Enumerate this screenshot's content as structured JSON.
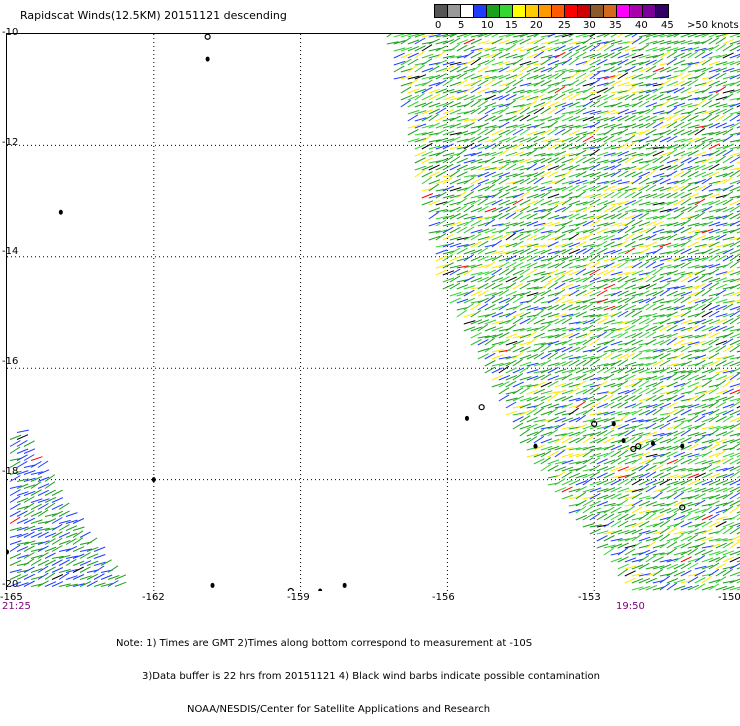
{
  "title": "Rapidscat Winds(12.5KM) 20151121 descending",
  "legend": {
    "labels": [
      "0",
      "5",
      "10",
      "15",
      "20",
      "25",
      "30",
      "35",
      "40",
      "45",
      ">50 knots"
    ],
    "colors": [
      "#555555",
      "#999999",
      "#ffffff",
      "#1e3cff",
      "#1aa01a",
      "#33d633",
      "#ffff00",
      "#ffcc00",
      "#ff9900",
      "#ff5a00",
      "#ff0000",
      "#cc0000",
      "#8b5a2b",
      "#d2691e",
      "#ff00ff",
      "#aa00aa",
      "#7a0099",
      "#330066"
    ]
  },
  "axes": {
    "lat_labels": [
      "-10",
      "-12",
      "-14",
      "-16",
      "-18",
      "-20"
    ],
    "lon_labels": [
      "-165",
      "-162",
      "-159",
      "-156",
      "-153",
      "-150"
    ]
  },
  "times": {
    "left": "21:25",
    "right": "19:50"
  },
  "notes": [
    "Note: 1) Times are GMT 2)Times along bottom correspond to measurement at -10S",
    "3)Data buffer is 22 hrs from 20151121 4) Black wind barbs indicate possible contamination",
    "NOAA/NESDIS/Center for Satellite Applications and Research"
  ],
  "map": {
    "lon_range": [
      -165,
      -150
    ],
    "lat_range": [
      -10,
      -20
    ],
    "grid_lines": "dotted",
    "swaths": [
      {
        "name": "eastern-swath",
        "polygon_lonlat": [
          [
            -157.3,
            -10
          ],
          [
            -150,
            -10
          ],
          [
            -150,
            -20
          ],
          [
            -152.3,
            -20
          ],
          [
            -154.5,
            -17.5
          ],
          [
            -156.2,
            -14.5
          ]
        ]
      },
      {
        "name": "western-swath",
        "polygon_lonlat": [
          [
            -165,
            -17.2
          ],
          [
            -164.8,
            -17.1
          ],
          [
            -163.9,
            -18.5
          ],
          [
            -162.6,
            -20
          ],
          [
            -165,
            -20
          ]
        ]
      }
    ],
    "islands_lonlat": [
      [
        -160.9,
        -10.05
      ],
      [
        -160.9,
        -10.45
      ],
      [
        -163.9,
        -13.2
      ],
      [
        -155.3,
        -16.7
      ],
      [
        -155.6,
        -16.9
      ],
      [
        -154.2,
        -17.4
      ],
      [
        -153.0,
        -17.0
      ],
      [
        -152.6,
        -17.0
      ],
      [
        -152.4,
        -17.3
      ],
      [
        -152.1,
        -17.4
      ],
      [
        -151.8,
        -17.35
      ],
      [
        -151.2,
        -17.4
      ],
      [
        -151.2,
        -18.5
      ],
      [
        -165.0,
        -19.3
      ],
      [
        -160.8,
        -19.9
      ],
      [
        -159.2,
        -20.0
      ],
      [
        -158.6,
        -20.0
      ],
      [
        -158.1,
        -19.9
      ],
      [
        -152.2,
        -17.45
      ],
      [
        -162.0,
        -18.0
      ]
    ]
  }
}
